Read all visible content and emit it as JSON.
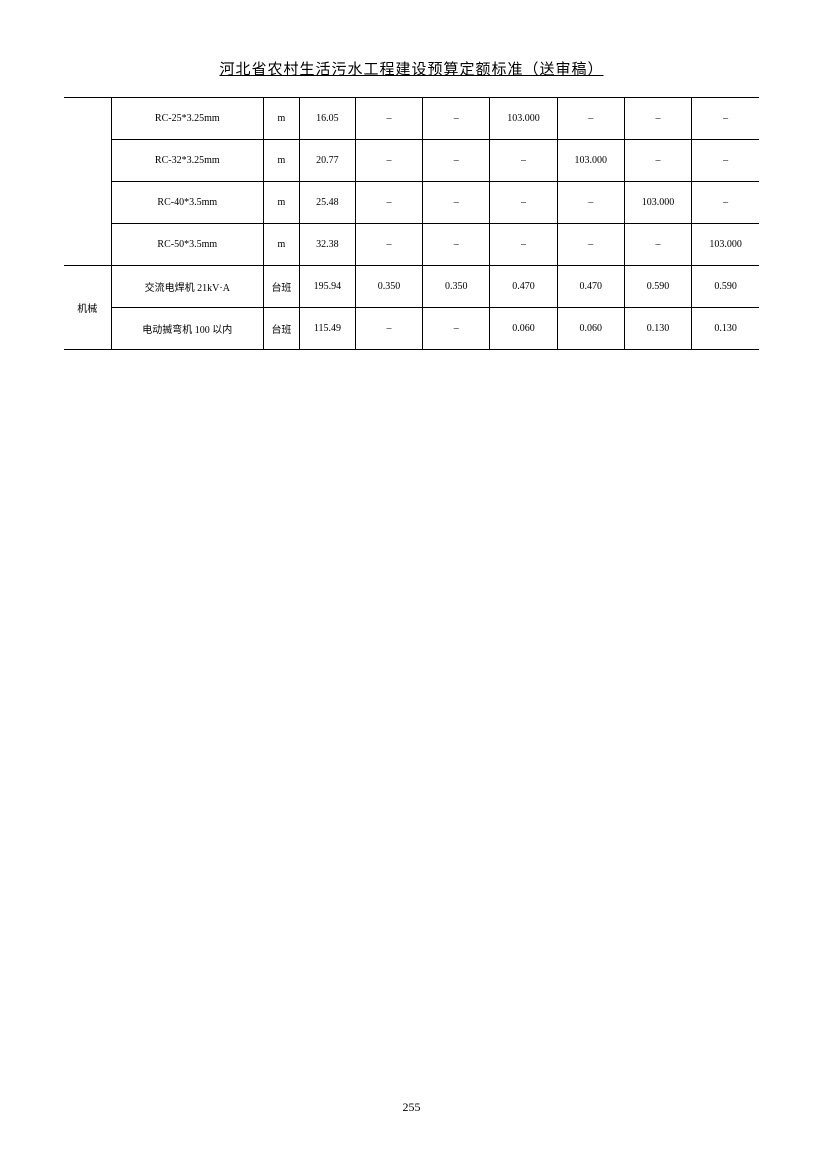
{
  "title": "河北省农村生活污水工程建设预算定额标准（送审稿）",
  "pageNumber": "255",
  "table": {
    "categoryLabel": "机械",
    "rows": [
      {
        "cat": "",
        "name": "RC-25*3.25mm",
        "unit": "m",
        "price": "16.05",
        "v1": "–",
        "v2": "–",
        "v3": "103.000",
        "v4": "–",
        "v5": "–",
        "v6": "–"
      },
      {
        "cat": "",
        "name": "RC-32*3.25mm",
        "unit": "m",
        "price": "20.77",
        "v1": "–",
        "v2": "–",
        "v3": "–",
        "v4": "103.000",
        "v5": "–",
        "v6": "–"
      },
      {
        "cat": "",
        "name": "RC-40*3.5mm",
        "unit": "m",
        "price": "25.48",
        "v1": "–",
        "v2": "–",
        "v3": "–",
        "v4": "–",
        "v5": "103.000",
        "v6": "–"
      },
      {
        "cat": "",
        "name": "RC-50*3.5mm",
        "unit": "m",
        "price": "32.38",
        "v1": "–",
        "v2": "–",
        "v3": "–",
        "v4": "–",
        "v5": "–",
        "v6": "103.000"
      },
      {
        "cat": "机械",
        "name": "交流电焊机 21kV·A",
        "unit": "台班",
        "price": "195.94",
        "v1": "0.350",
        "v2": "0.350",
        "v3": "0.470",
        "v4": "0.470",
        "v5": "0.590",
        "v6": "0.590"
      },
      {
        "cat": "",
        "name": "电动揻弯机 100 以内",
        "unit": "台班",
        "price": "115.49",
        "v1": "–",
        "v2": "–",
        "v3": "0.060",
        "v4": "0.060",
        "v5": "0.130",
        "v6": "0.130"
      }
    ]
  }
}
